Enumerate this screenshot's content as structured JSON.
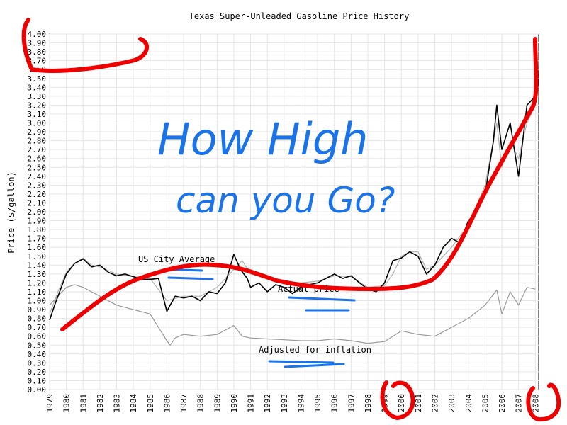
{
  "chart_data": {
    "type": "line",
    "title": "Texas Super-Unleaded Gasoline Price History",
    "xlabel": "",
    "ylabel": "Price ($/gallon)",
    "xlim": [
      1979,
      2008.2
    ],
    "ylim": [
      0,
      4.0
    ],
    "grid": true,
    "categories": [
      "1979",
      "1980",
      "1981",
      "1982",
      "1983",
      "1984",
      "1985",
      "1986",
      "1987",
      "1988",
      "1989",
      "1990",
      "1991",
      "1992",
      "1993",
      "1994",
      "1995",
      "1996",
      "1997",
      "1998",
      "1999",
      "2000",
      "2001",
      "2002",
      "2003",
      "2004",
      "2005",
      "2006",
      "2007",
      "2008"
    ],
    "y_ticks": [
      "0.00",
      "0.10",
      "0.20",
      "0.30",
      "0.40",
      "0.50",
      "0.60",
      "0.70",
      "0.80",
      "0.90",
      "1.00",
      "1.10",
      "1.20",
      "1.30",
      "1.40",
      "1.50",
      "1.60",
      "1.70",
      "1.80",
      "1.90",
      "2.00",
      "2.10",
      "2.20",
      "2.30",
      "2.40",
      "2.50",
      "2.60",
      "2.70",
      "2.80",
      "2.90",
      "3.00",
      "3.10",
      "3.20",
      "3.30",
      "3.40",
      "3.50",
      "3.60",
      "3.70",
      "3.80",
      "3.90",
      "4.00"
    ],
    "series": [
      {
        "name": "Actual price",
        "color": "#000000",
        "x": [
          1979.0,
          1979.3,
          1979.6,
          1980.0,
          1980.5,
          1981.0,
          1981.5,
          1982.0,
          1982.5,
          1983.0,
          1983.5,
          1984.0,
          1984.5,
          1985.0,
          1985.5,
          1986.0,
          1986.2,
          1986.5,
          1987.0,
          1987.5,
          1988.0,
          1988.5,
          1989.0,
          1989.5,
          1990.0,
          1990.4,
          1990.8,
          1991.0,
          1991.5,
          1992.0,
          1992.5,
          1993.0,
          1993.5,
          1994.0,
          1994.5,
          1995.0,
          1995.5,
          1996.0,
          1996.5,
          1997.0,
          1997.5,
          1998.0,
          1998.5,
          1999.0,
          1999.5,
          2000.0,
          2000.5,
          2001.0,
          2001.5,
          2002.0,
          2002.5,
          2003.0,
          2003.5,
          2004.0,
          2004.5,
          2005.0,
          2005.5,
          2005.7,
          2006.0,
          2006.5,
          2007.0,
          2007.5,
          2008.0
        ],
        "values": [
          0.78,
          0.95,
          1.1,
          1.3,
          1.42,
          1.47,
          1.38,
          1.4,
          1.32,
          1.28,
          1.3,
          1.27,
          1.24,
          1.24,
          1.25,
          0.88,
          0.95,
          1.05,
          1.03,
          1.05,
          1.0,
          1.1,
          1.08,
          1.2,
          1.52,
          1.35,
          1.25,
          1.15,
          1.2,
          1.1,
          1.18,
          1.15,
          1.08,
          1.15,
          1.18,
          1.2,
          1.25,
          1.3,
          1.25,
          1.28,
          1.2,
          1.13,
          1.1,
          1.2,
          1.45,
          1.48,
          1.55,
          1.5,
          1.3,
          1.4,
          1.6,
          1.7,
          1.65,
          1.9,
          2.0,
          2.2,
          2.8,
          3.2,
          2.7,
          3.0,
          2.4,
          3.2,
          3.3
        ]
      },
      {
        "name": "US City Average",
        "color": "#b0b0b0",
        "x": [
          1979.0,
          1979.5,
          1980.0,
          1980.5,
          1981.0,
          1981.5,
          1982.0,
          1983.0,
          1984.0,
          1985.0,
          1986.0,
          1987.0,
          1988.0,
          1989.0,
          1990.0,
          1990.5,
          1991.0,
          1992.0,
          1993.0,
          1994.0,
          1995.0,
          1996.0,
          1997.0,
          1998.0,
          1999.0,
          1999.5,
          2000.0,
          2000.5,
          2001.0,
          2001.5,
          2002.0,
          2003.0,
          2004.0,
          2005.0,
          2005.7,
          2006.0,
          2006.5,
          2007.0,
          2007.5,
          2008.0
        ],
        "values": [
          0.85,
          1.1,
          1.32,
          1.42,
          1.48,
          1.4,
          1.38,
          1.3,
          1.27,
          1.25,
          1.0,
          1.05,
          1.05,
          1.15,
          1.35,
          1.45,
          1.3,
          1.25,
          1.22,
          1.2,
          1.22,
          1.28,
          1.27,
          1.15,
          1.17,
          1.3,
          1.5,
          1.55,
          1.55,
          1.35,
          1.4,
          1.6,
          1.85,
          2.3,
          3.0,
          2.5,
          2.8,
          2.6,
          3.0,
          3.2
        ]
      },
      {
        "name": "Adjusted for inflation",
        "color": "#999999",
        "x": [
          1979.0,
          1979.5,
          1980.0,
          1980.5,
          1981.0,
          1982.0,
          1983.0,
          1984.0,
          1985.0,
          1986.0,
          1986.2,
          1986.5,
          1987.0,
          1988.0,
          1989.0,
          1990.0,
          1990.5,
          1991.0,
          1992.0,
          1993.0,
          1994.0,
          1995.0,
          1996.0,
          1997.0,
          1998.0,
          1999.0,
          2000.0,
          2001.0,
          2002.0,
          2003.0,
          2004.0,
          2005.0,
          2005.7,
          2006.0,
          2006.5,
          2007.0,
          2007.5,
          2008.0
        ],
        "values": [
          0.95,
          1.05,
          1.15,
          1.18,
          1.15,
          1.05,
          0.95,
          0.9,
          0.85,
          0.55,
          0.5,
          0.58,
          0.62,
          0.6,
          0.62,
          0.72,
          0.6,
          0.58,
          0.57,
          0.56,
          0.55,
          0.55,
          0.57,
          0.55,
          0.52,
          0.54,
          0.66,
          0.62,
          0.6,
          0.7,
          0.8,
          0.95,
          1.12,
          0.85,
          1.1,
          0.95,
          1.15,
          1.13
        ]
      }
    ],
    "annotations": {
      "series_labels": [
        "US City Average",
        "Actual price",
        "Adjusted for inflation"
      ],
      "handwritten_line1": "How High",
      "handwritten_line2": "can you Go?"
    }
  }
}
